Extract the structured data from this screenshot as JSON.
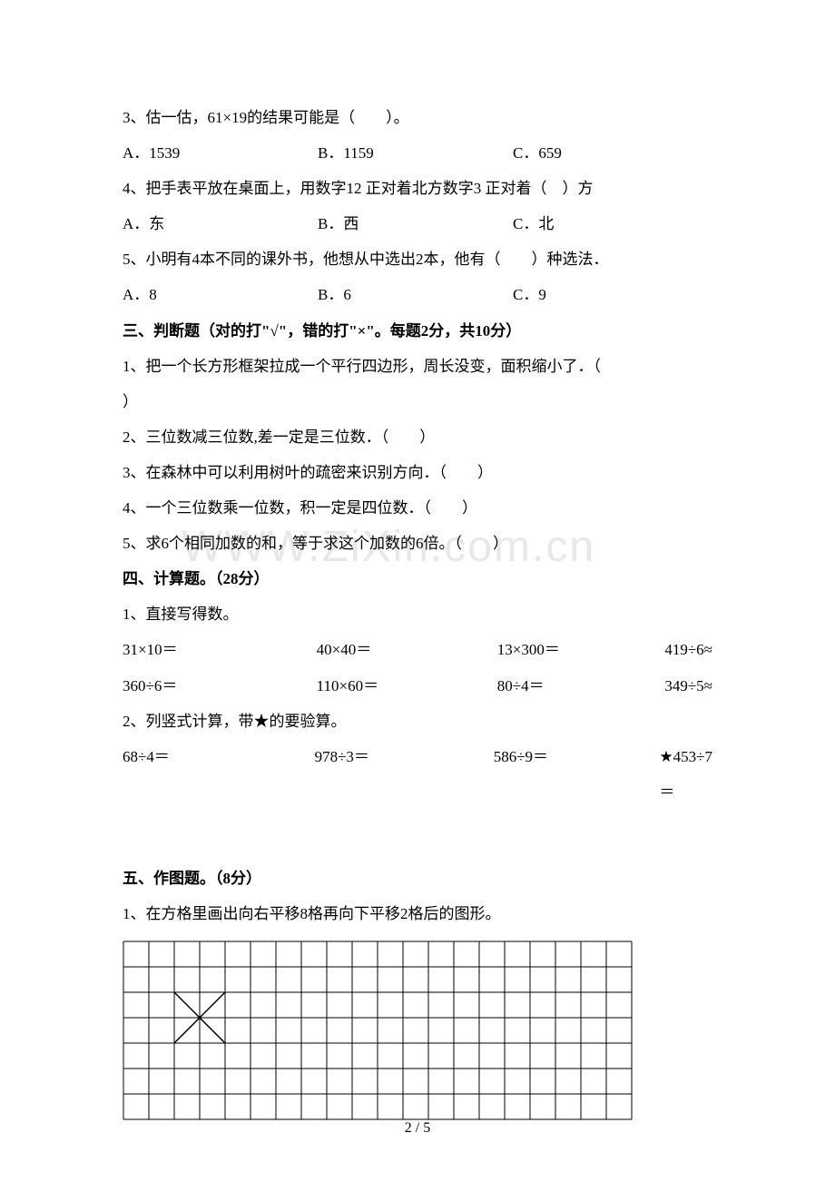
{
  "watermark": "WWW.ZiXin.com.cn",
  "q3": {
    "text": "3、估一估，61×19的结果可能是（　　）。",
    "a": "A．1539",
    "b": "B．1159",
    "c": "C．659"
  },
  "q4": {
    "text": "4、把手表平放在桌面上，用数字12 正对着北方数字3 正对着（　）方",
    "a": "A．东",
    "b": "B．西",
    "c": "C．北"
  },
  "q5": {
    "text": "5、小明有4本不同的课外书，他想从中选出2本，他有（　　）种选法．",
    "a": "A．8",
    "b": "B．6",
    "c": "C．9"
  },
  "section3": {
    "title": "三、判断题（对的打\"√\"，错的打\"×\"。每题2分，共10分）",
    "q1a": "1、把一个长方形框架拉成一个平行四边形，周长没变，面积缩小了．（　",
    "q1b": "）",
    "q2": "2、三位数减三位数,差一定是三位数．（　　）",
    "q3": "3、在森林中可以利用树叶的疏密来识别方向．（　　）",
    "q4": "4、一个三位数乘一位数，积一定是四位数．（　　）",
    "q5": "5、求6个相同加数的和，等于求这个加数的6倍。（　　）"
  },
  "section4": {
    "title": "四、计算题。（28分）",
    "sub1": "1、直接写得数。",
    "row1": {
      "a": "31×10＝",
      "b": "40×40＝",
      "c": "13×300＝",
      "d": "419÷6≈"
    },
    "row2": {
      "a": "360÷6＝",
      "b": "110×60＝",
      "c": "80÷4＝",
      "d": "349÷5≈"
    },
    "sub2": "2、列竖式计算，带★的要验算。",
    "row3": {
      "a": "68÷4＝",
      "b": "978÷3＝",
      "c": "586÷9＝",
      "d": "★453÷7＝"
    }
  },
  "section5": {
    "title": "五、作图题。（8分）",
    "q1": "1、在方格里画出向右平移8格再向下平移2格后的图形。"
  },
  "grid": {
    "cols": 20,
    "rows": 7,
    "cell_size": 28,
    "stroke": "#000000",
    "stroke_width": 1
  },
  "page_num": "2 / 5"
}
